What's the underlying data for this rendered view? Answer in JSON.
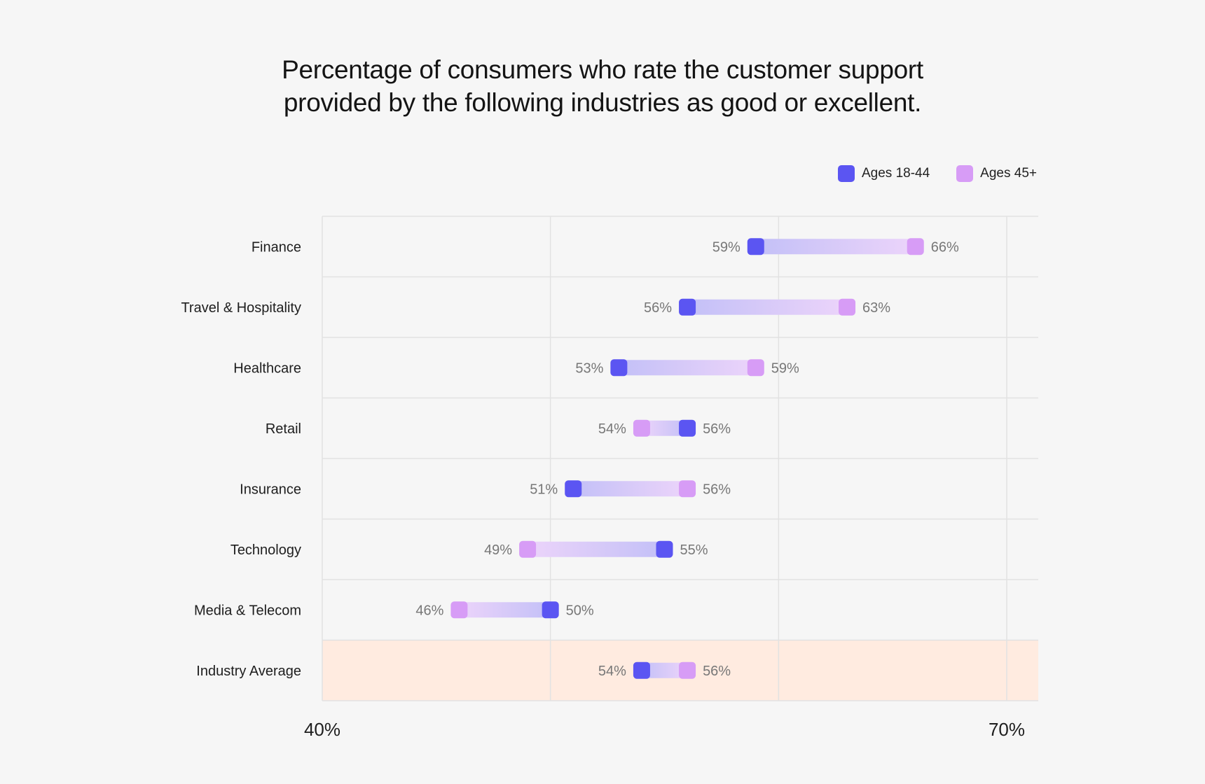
{
  "title_lines": [
    "Percentage of consumers who rate the customer support",
    "provided by the following industries as good or excellent."
  ],
  "legend": [
    {
      "label": "Ages 18-44",
      "color": "#5b55f2"
    },
    {
      "label": "Ages 45+",
      "color": "#d79cf6"
    }
  ],
  "chart_data": {
    "type": "dumbbell",
    "title": "Percentage of consumers who rate the customer support provided by the following industries as good or excellent.",
    "categories": [
      "Finance",
      "Travel & Hospitality",
      "Healthcare",
      "Retail",
      "Insurance",
      "Technology",
      "Media & Telecom",
      "Industry Average"
    ],
    "series": [
      {
        "name": "Ages 18-44",
        "color": "#5b55f2",
        "values": [
          59,
          56,
          53,
          56,
          51,
          55,
          50,
          54
        ]
      },
      {
        "name": "Ages 45+",
        "color": "#d79cf6",
        "values": [
          66,
          63,
          59,
          54,
          56,
          49,
          46,
          56
        ]
      }
    ],
    "xlim": [
      40,
      70
    ],
    "x_tick_labels": [
      "40%",
      "70%"
    ],
    "highlight_category": "Industry Average",
    "highlight_color": "#ffebe0",
    "grid": true
  }
}
